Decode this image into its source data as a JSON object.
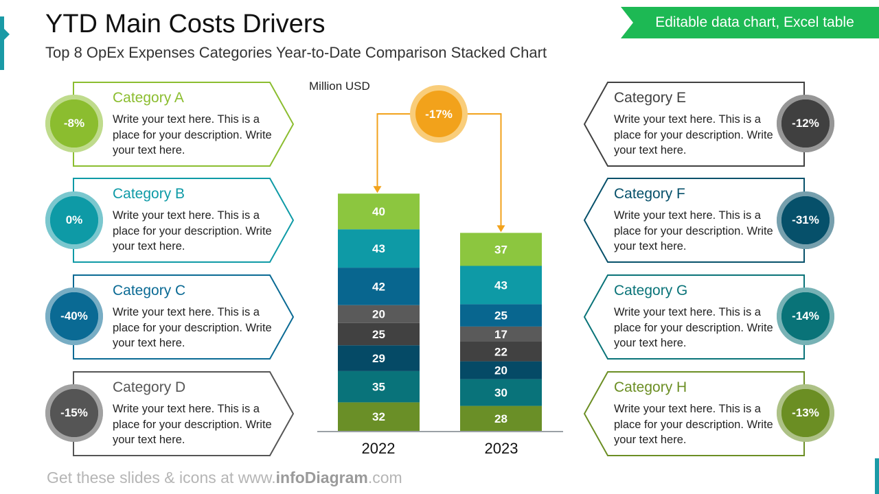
{
  "header": {
    "title": "YTD Main Costs Drivers",
    "subtitle": "Top 8 OpEx Expenses Categories Year-to-Date Comparison Stacked Chart",
    "tag": "Editable data chart, Excel table"
  },
  "footer": {
    "prefix": "Get these slides & icons at www.",
    "brand": "infoDiagram",
    "suffix": ".com"
  },
  "colors": {
    "A": "#8bbd2f",
    "B": "#0e9aa6",
    "C": "#0a6a94",
    "D": "#555555",
    "E": "#404040",
    "F": "#06506a",
    "G": "#097378",
    "H": "#6b8e23",
    "change": "#f2a21b"
  },
  "categories": [
    {
      "id": "A",
      "name": "Category A",
      "change": "-8%",
      "text": "Write your text here. This is a place for your description. Write your text here."
    },
    {
      "id": "B",
      "name": "Category B",
      "change": "0%",
      "text": "Write your text here. This is a place for your description. Write your text here."
    },
    {
      "id": "C",
      "name": "Category C",
      "change": "-40%",
      "text": "Write your text here. This is a place for your description. Write your text here."
    },
    {
      "id": "D",
      "name": "Category D",
      "change": "-15%",
      "text": "Write your text here. This is a place for your description. Write your text here."
    },
    {
      "id": "E",
      "name": "Category E",
      "change": "-12%",
      "text": "Write your text here. This is a place for your description. Write your text here."
    },
    {
      "id": "F",
      "name": "Category F",
      "change": "-31%",
      "text": "Write your text here. This is a place for your description. Write your text here."
    },
    {
      "id": "G",
      "name": "Category G",
      "change": "-14%",
      "text": "Write your text here. This is a place for your description. Write your text here."
    },
    {
      "id": "H",
      "name": "Category H",
      "change": "-13%",
      "text": "Write your text here. This is a place for your description. Write your text here."
    }
  ],
  "chart_data": {
    "type": "bar",
    "stacked": true,
    "ylabel": "Million USD",
    "categories": [
      "2022",
      "2023"
    ],
    "series": [
      {
        "name": "Category A",
        "values": [
          40,
          37
        ]
      },
      {
        "name": "Category B",
        "values": [
          43,
          43
        ]
      },
      {
        "name": "Category C",
        "values": [
          42,
          25
        ]
      },
      {
        "name": "Category D",
        "values": [
          20,
          17
        ]
      },
      {
        "name": "Category E",
        "values": [
          25,
          22
        ]
      },
      {
        "name": "Category F",
        "values": [
          29,
          20
        ]
      },
      {
        "name": "Category G",
        "values": [
          35,
          30
        ]
      },
      {
        "name": "Category H",
        "values": [
          32,
          28
        ]
      }
    ],
    "total_change": "-17%",
    "grid": false
  }
}
